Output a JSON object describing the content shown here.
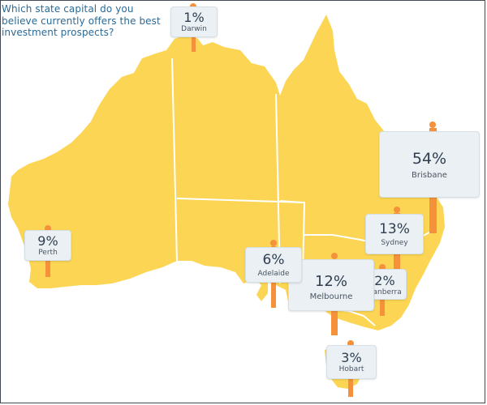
{
  "question": "Which state capital do you believe currently offers the best investment prospects?",
  "colors": {
    "land": "#fbd553",
    "border": "#ffffff",
    "bar": "#f4913a",
    "bar_dark": "#e8792a",
    "callout_bg": "#eaf0f3",
    "text_pct": "#2f3e50",
    "text_city": "#4a5563",
    "question_text": "#2b6a96"
  },
  "cities": {
    "darwin": {
      "name": "Darwin",
      "percent": "1%",
      "value": 1
    },
    "brisbane": {
      "name": "Brisbane",
      "percent": "54%",
      "value": 54
    },
    "sydney": {
      "name": "Sydney",
      "percent": "13%",
      "value": 13
    },
    "canberra": {
      "name": "Canberra",
      "percent": "2%",
      "value": 2
    },
    "melbourne": {
      "name": "Melbourne",
      "percent": "12%",
      "value": 12
    },
    "adelaide": {
      "name": "Adelaide",
      "percent": "6%",
      "value": 6
    },
    "perth": {
      "name": "Perth",
      "percent": "9%",
      "value": 9
    },
    "hobart": {
      "name": "Hobart",
      "percent": "3%",
      "value": 3
    }
  }
}
